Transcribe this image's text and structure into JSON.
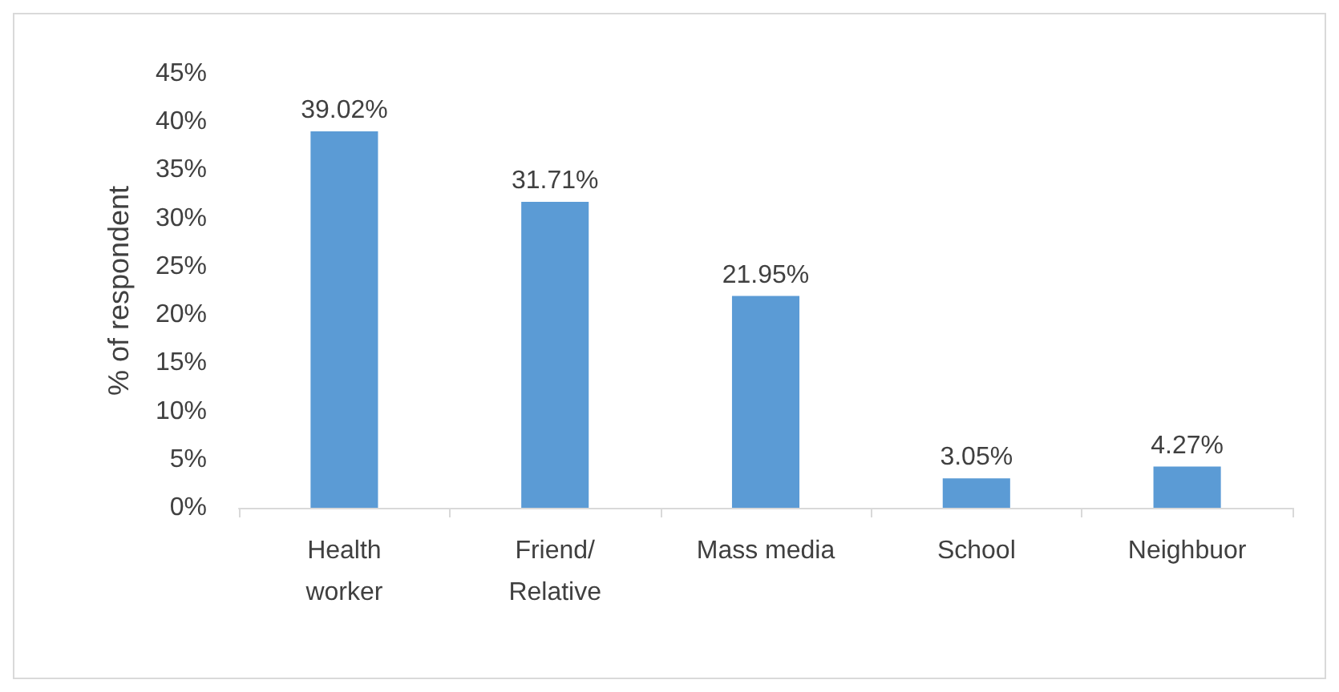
{
  "chart_data": {
    "type": "bar",
    "ylabel": "% of respondent",
    "categories": [
      "Health\nworker",
      "Friend/\nRelative",
      "Mass media",
      "School",
      "Neighbuor"
    ],
    "values": [
      39.02,
      31.71,
      21.95,
      3.05,
      4.27
    ],
    "value_labels": [
      "39.02%",
      "31.71%",
      "21.95%",
      "3.05%",
      "4.27%"
    ],
    "color": "#5b9bd5",
    "ylim": [
      0,
      45
    ],
    "yticks": [
      {
        "value": 0,
        "label": "0%"
      },
      {
        "value": 5,
        "label": "5%"
      },
      {
        "value": 10,
        "label": "10%"
      },
      {
        "value": 15,
        "label": "15%"
      },
      {
        "value": 20,
        "label": "20%"
      },
      {
        "value": 25,
        "label": "25%"
      },
      {
        "value": 30,
        "label": "30%"
      },
      {
        "value": 35,
        "label": "35%"
      },
      {
        "value": 40,
        "label": "40%"
      },
      {
        "value": 45,
        "label": "45%"
      }
    ],
    "grid": false
  }
}
